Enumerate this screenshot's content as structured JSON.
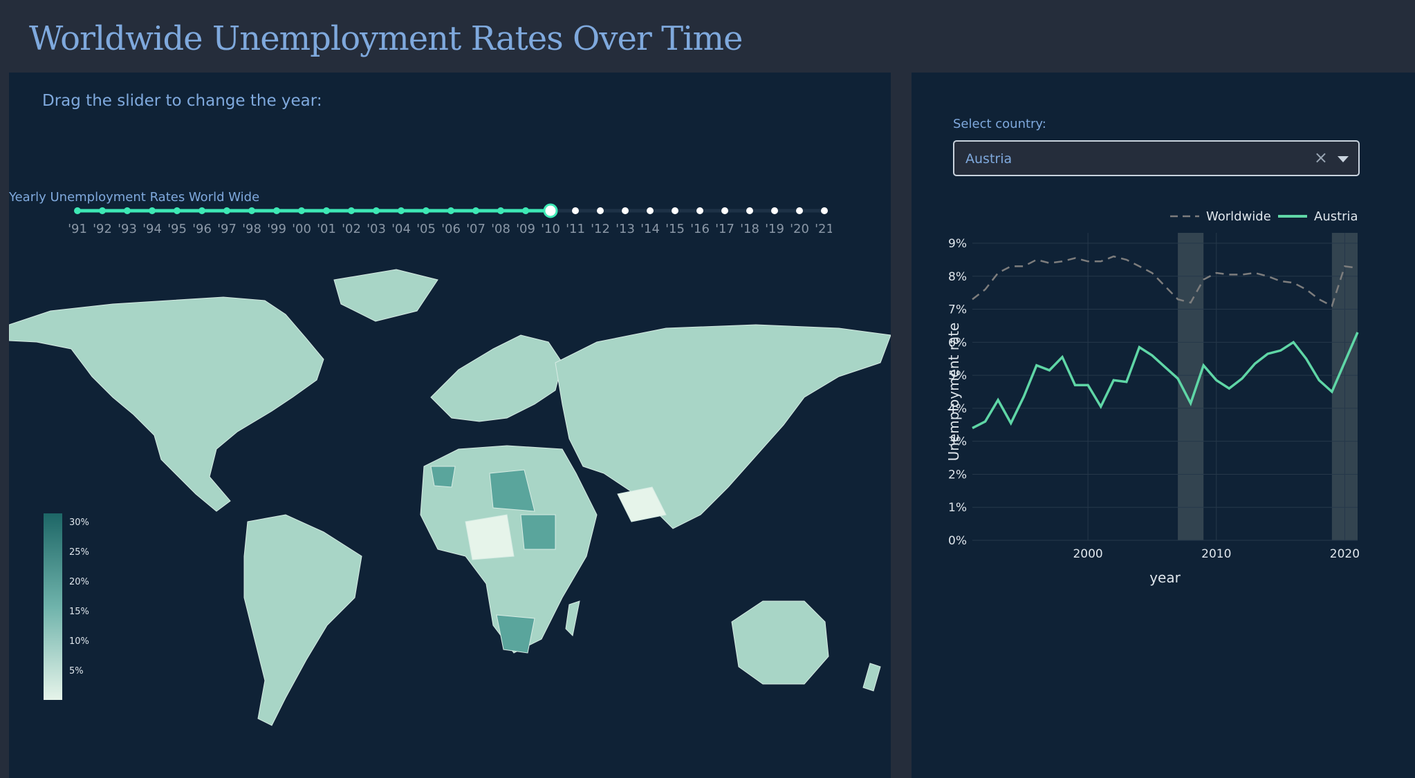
{
  "page": {
    "title": "Worldwide Unemployment Rates Over Time"
  },
  "slider": {
    "instruction": "Drag the slider to change the year:",
    "ticks": [
      "'91",
      "'92",
      "'93",
      "'94",
      "'95",
      "'96",
      "'97",
      "'98",
      "'99",
      "'00",
      "'01",
      "'02",
      "'03",
      "'04",
      "'05",
      "'06",
      "'07",
      "'08",
      "'09",
      "'10",
      "'11",
      "'12",
      "'13",
      "'14",
      "'15",
      "'16",
      "'17",
      "'18",
      "'19",
      "'20",
      "'21"
    ],
    "selected_index": 19,
    "active_color": "#3ee8b5"
  },
  "map": {
    "title": "Yearly Unemployment Rates World Wide",
    "colorbar_ticks": [
      "30%",
      "25%",
      "20%",
      "15%",
      "10%",
      "5%"
    ],
    "colorscale": [
      "#e6f4ea",
      "#a8d5c6",
      "#6fb3ab",
      "#3f8f8c",
      "#1d6666"
    ]
  },
  "country": {
    "label": "Select country:",
    "selected": "Austria",
    "clear_icon": "close-icon",
    "dropdown_icon": "chevron-down-icon"
  },
  "chart_data": {
    "type": "line",
    "xlabel": "year",
    "ylabel": "Unemployment rate",
    "ylim": [
      0,
      9
    ],
    "xlim": [
      1991,
      2021
    ],
    "yticks": [
      "0%",
      "1%",
      "2%",
      "3%",
      "4%",
      "5%",
      "6%",
      "7%",
      "8%",
      "9%"
    ],
    "xticks": [
      2000,
      2010,
      2020
    ],
    "legend_position": "top-right",
    "shaded_periods": [
      [
        2007,
        2009
      ],
      [
        2019,
        2021
      ]
    ],
    "x": [
      1991,
      1992,
      1993,
      1994,
      1995,
      1996,
      1997,
      1998,
      1999,
      2000,
      2001,
      2002,
      2003,
      2004,
      2005,
      2006,
      2007,
      2008,
      2009,
      2010,
      2011,
      2012,
      2013,
      2014,
      2015,
      2016,
      2017,
      2018,
      2019,
      2020,
      2021
    ],
    "series": [
      {
        "name": "Worldwide",
        "style": "dashed",
        "color": "#7d7d7d",
        "values": [
          7.3,
          7.6,
          8.1,
          8.3,
          8.3,
          8.5,
          8.4,
          8.45,
          8.55,
          8.45,
          8.45,
          8.6,
          8.5,
          8.3,
          8.1,
          7.7,
          7.3,
          7.2,
          7.9,
          8.1,
          8.05,
          8.05,
          8.1,
          8.0,
          7.85,
          7.8,
          7.6,
          7.3,
          7.1,
          8.3,
          8.25
        ]
      },
      {
        "name": "Austria",
        "style": "solid",
        "color": "#5fd6a6",
        "values": [
          3.4,
          3.6,
          4.25,
          3.55,
          4.35,
          5.3,
          5.15,
          5.55,
          4.7,
          4.7,
          4.05,
          4.85,
          4.8,
          5.85,
          5.6,
          5.25,
          4.9,
          4.15,
          5.3,
          4.85,
          4.6,
          4.9,
          5.35,
          5.65,
          5.75,
          6.0,
          5.5,
          4.85,
          4.5,
          5.4,
          6.3
        ]
      }
    ]
  }
}
